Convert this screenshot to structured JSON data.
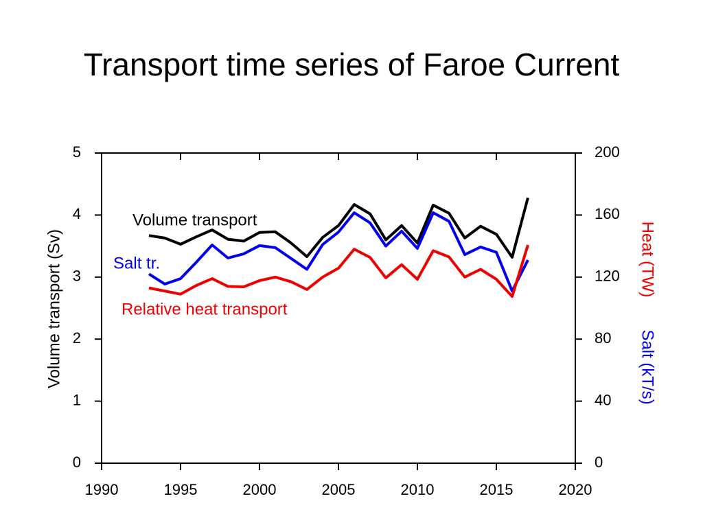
{
  "chart_data": {
    "type": "line",
    "title": "Transport time series of Faroe Current",
    "ylabel": "Volume transport (Sv)",
    "y2label": [
      "Heat (TW)",
      "Salt (kT/s)"
    ],
    "x": [
      1993,
      1994,
      1995,
      1996,
      1997,
      1998,
      1999,
      2000,
      2001,
      2002,
      2003,
      2004,
      2005,
      2006,
      2007,
      2008,
      2009,
      2010,
      2011,
      2012,
      2013,
      2014,
      2015,
      2016,
      2017
    ],
    "xlim": [
      1990,
      2020
    ],
    "xticks": [
      1990,
      1995,
      2000,
      2005,
      2010,
      2015,
      2020
    ],
    "ylim": [
      0,
      5
    ],
    "yticks": [
      0,
      1,
      2,
      3,
      4,
      5
    ],
    "y2lim": [
      0,
      200
    ],
    "y2ticks": [
      0,
      40,
      80,
      120,
      160,
      200
    ],
    "series": [
      {
        "name": "Volume transport",
        "color": "#000000",
        "values": [
          3.67,
          3.63,
          3.53,
          3.65,
          3.76,
          3.61,
          3.58,
          3.72,
          3.73,
          3.55,
          3.33,
          3.64,
          3.83,
          4.17,
          4.02,
          3.6,
          3.83,
          3.55,
          4.16,
          4.03,
          3.63,
          3.82,
          3.69,
          3.32,
          4.28
        ]
      },
      {
        "name": "Salt tr.",
        "color": "#0000ee",
        "axis": "y2",
        "values": [
          122,
          115.5,
          119,
          129.6,
          140.7,
          132.3,
          135,
          140.3,
          139,
          132,
          125,
          141,
          149,
          161.5,
          155,
          140,
          149.6,
          138.5,
          161.5,
          156,
          134.5,
          139.4,
          136,
          111,
          131
        ]
      },
      {
        "name": "Relative heat transport",
        "color": "#ee0000",
        "axis": "y2",
        "values": [
          113,
          111,
          109,
          114.6,
          119,
          114,
          113.7,
          117.7,
          120,
          117,
          112,
          120,
          125.7,
          138,
          132.7,
          119.5,
          128,
          118.6,
          137,
          133,
          120,
          125,
          118.6,
          107.5,
          140.7
        ]
      }
    ]
  }
}
